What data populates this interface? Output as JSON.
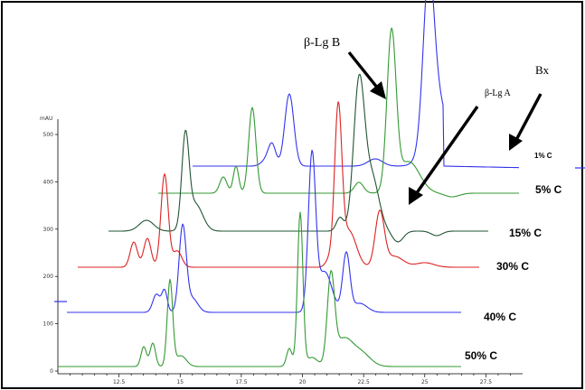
{
  "chart_data": {
    "type": "line",
    "ylabel": "mAU",
    "x_ticks": [
      12.5,
      15,
      17.5,
      20,
      22.5,
      25,
      27.5
    ],
    "y_ticks": [
      0,
      100,
      200,
      300,
      400,
      500
    ],
    "x_tick_labels": [
      "12.5",
      "15",
      "17.5",
      "20",
      "22.5",
      "25",
      "27.5"
    ],
    "y_tick_labels": [
      "0",
      "100",
      "200",
      "300",
      "400",
      "500"
    ],
    "series": [
      {
        "name": "1% C",
        "color": "#3333ee"
      },
      {
        "name": "5% C",
        "color": "#339933"
      },
      {
        "name": "15% C",
        "color": "#225533"
      },
      {
        "name": "30% C",
        "color": "#dd2222"
      },
      {
        "name": "40% C",
        "color": "#3333ee"
      },
      {
        "name": "50% C",
        "color": "#339933"
      }
    ],
    "annotations": [
      "β-Lg B",
      "β-Lg A",
      "Bx"
    ]
  }
}
